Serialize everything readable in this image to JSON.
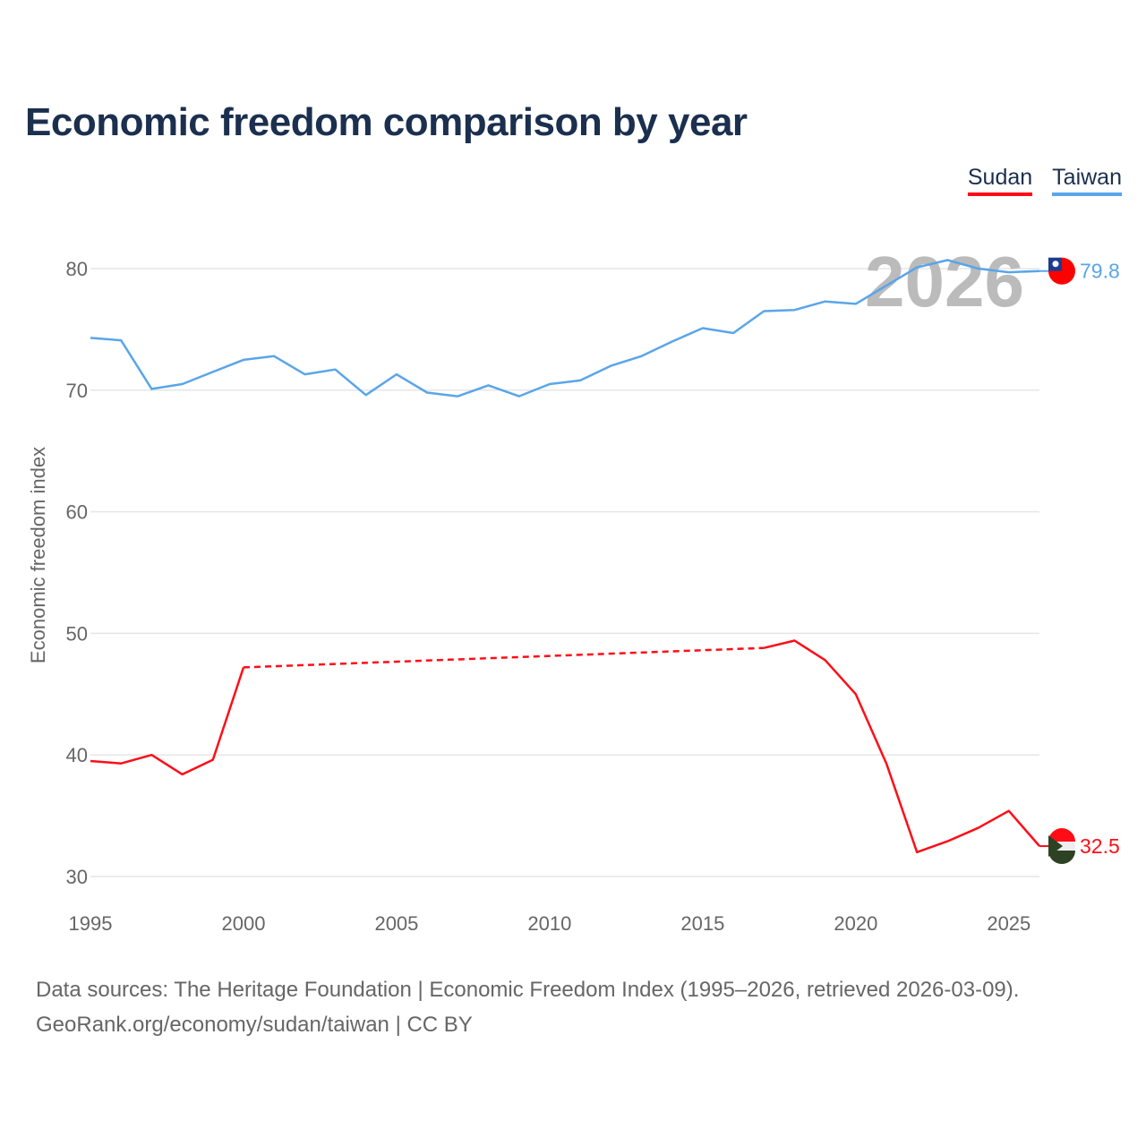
{
  "title": "Economic freedom comparison by year",
  "footer": {
    "line1": "Data sources: The Heritage Foundation | Economic Freedom Index (1995–2026, retrieved 2026-03-09).",
    "line2": "GeoRank.org/economy/sudan/taiwan | CC BY"
  },
  "chart_data": {
    "type": "line",
    "title": "Economic freedom comparison by year",
    "xlabel": "",
    "ylabel": "Economic freedom index",
    "xlim": [
      1995,
      2026
    ],
    "ylim": [
      30,
      82
    ],
    "yticks": [
      30,
      40,
      50,
      60,
      70,
      80
    ],
    "xticks": [
      1995,
      2000,
      2005,
      2010,
      2015,
      2020,
      2025
    ],
    "grid": true,
    "legend_position": "top-right",
    "watermark_year": "2026",
    "x": [
      1995,
      1996,
      1997,
      1998,
      1999,
      2000,
      2001,
      2002,
      2003,
      2004,
      2005,
      2006,
      2007,
      2008,
      2009,
      2010,
      2011,
      2012,
      2013,
      2014,
      2015,
      2016,
      2017,
      2018,
      2019,
      2020,
      2021,
      2022,
      2023,
      2024,
      2025,
      2026
    ],
    "series": [
      {
        "name": "Sudan",
        "color": "#ff0d17",
        "end_label": "32.5",
        "values": [
          39.5,
          39.3,
          40.0,
          38.4,
          39.6,
          47.2,
          null,
          null,
          null,
          null,
          null,
          null,
          null,
          null,
          null,
          null,
          null,
          null,
          null,
          null,
          null,
          null,
          48.8,
          49.4,
          47.8,
          45.0,
          39.3,
          32.0,
          32.9,
          34.0,
          35.4,
          32.5
        ]
      },
      {
        "name": "Taiwan",
        "color": "#5aa5ea",
        "end_label": "79.8",
        "values": [
          74.3,
          74.1,
          70.1,
          70.5,
          71.5,
          72.5,
          72.8,
          71.3,
          71.7,
          69.6,
          71.3,
          69.8,
          69.5,
          70.4,
          69.5,
          70.5,
          70.8,
          72.0,
          72.8,
          74.0,
          75.1,
          74.7,
          76.5,
          76.6,
          77.3,
          77.1,
          78.6,
          80.1,
          80.7,
          80.0,
          79.7,
          79.8
        ]
      }
    ]
  }
}
